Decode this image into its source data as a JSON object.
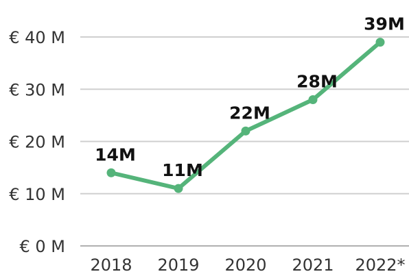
{
  "chart_data": {
    "type": "line",
    "categories": [
      "2018",
      "2019",
      "2020",
      "2021",
      "2022*"
    ],
    "series": [
      {
        "values": [
          14,
          11,
          22,
          28,
          39
        ],
        "data_labels": [
          "14M",
          "11M",
          "22M",
          "28M",
          "39M"
        ],
        "color": "#55b47a"
      }
    ],
    "y_ticks": [
      {
        "value": 0,
        "label": "€ 0 M"
      },
      {
        "value": 10,
        "label": "€ 10 M"
      },
      {
        "value": 20,
        "label": "€ 20 M"
      },
      {
        "value": 30,
        "label": "€ 30 M"
      },
      {
        "value": 40,
        "label": "€ 40 M"
      }
    ],
    "ylim": [
      0,
      40
    ],
    "grid": true,
    "legend": "none",
    "title": "",
    "xlabel": "",
    "ylabel": ""
  }
}
